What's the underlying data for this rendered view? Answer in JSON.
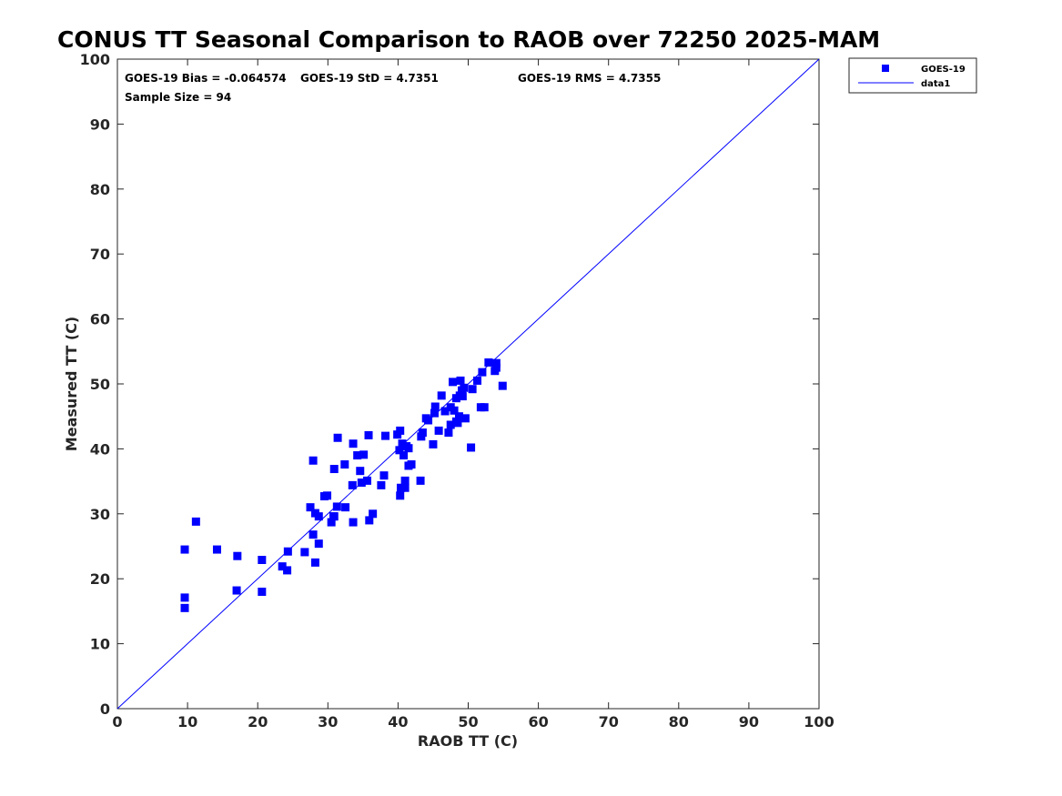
{
  "chart_data": {
    "type": "scatter",
    "title": "CONUS TT Seasonal Comparison to RAOB over 72250 2025-MAM",
    "xlabel": "RAOB TT (C)",
    "ylabel": "Measured TT (C)",
    "xlim": [
      0,
      100
    ],
    "ylim": [
      0,
      100
    ],
    "xticks": [
      "0",
      "10",
      "20",
      "30",
      "40",
      "50",
      "60",
      "70",
      "80",
      "90",
      "100"
    ],
    "yticks": [
      "0",
      "10",
      "20",
      "30",
      "40",
      "50",
      "60",
      "70",
      "80",
      "90",
      "100"
    ],
    "grid": false,
    "annotations": {
      "bias": "GOES-19 Bias = -0.064574",
      "std": "GOES-19 StD = 4.7351",
      "rms": "GOES-19 RMS = 4.7355",
      "sample": "Sample Size = 94"
    },
    "legend": {
      "position": "top-right-outside",
      "entries": [
        "GOES-19",
        "data1"
      ]
    },
    "colors": {
      "series": "#0000ff",
      "line": "#0000ff",
      "axis": "#262626"
    },
    "series": [
      {
        "name": "GOES-19",
        "marker": "square",
        "points": [
          [
            9.6,
            24.5
          ],
          [
            9.6,
            17.1
          ],
          [
            9.6,
            15.5
          ],
          [
            11.2,
            28.8
          ],
          [
            14.2,
            24.5
          ],
          [
            17.1,
            23.5
          ],
          [
            17.0,
            18.2
          ],
          [
            20.6,
            22.9
          ],
          [
            20.6,
            18.0
          ],
          [
            23.5,
            21.9
          ],
          [
            24.3,
            24.2
          ],
          [
            24.2,
            21.3
          ],
          [
            26.7,
            24.1
          ],
          [
            27.5,
            31.0
          ],
          [
            27.9,
            38.2
          ],
          [
            27.9,
            26.8
          ],
          [
            28.2,
            30.1
          ],
          [
            28.2,
            22.5
          ],
          [
            28.7,
            25.4
          ],
          [
            28.7,
            29.6
          ],
          [
            29.5,
            32.7
          ],
          [
            29.9,
            32.8
          ],
          [
            30.5,
            28.7
          ],
          [
            30.9,
            29.6
          ],
          [
            30.9,
            36.9
          ],
          [
            31.3,
            31.1
          ],
          [
            31.4,
            41.7
          ],
          [
            32.4,
            37.6
          ],
          [
            32.5,
            31.0
          ],
          [
            33.5,
            34.4
          ],
          [
            33.6,
            28.7
          ],
          [
            33.6,
            40.8
          ],
          [
            34.2,
            39.0
          ],
          [
            34.6,
            36.6
          ],
          [
            34.8,
            34.8
          ],
          [
            35.1,
            39.1
          ],
          [
            35.6,
            35.1
          ],
          [
            35.8,
            42.1
          ],
          [
            35.9,
            29.0
          ],
          [
            36.4,
            30.0
          ],
          [
            37.6,
            34.4
          ],
          [
            38.0,
            35.9
          ],
          [
            38.2,
            42.0
          ],
          [
            39.9,
            42.2
          ],
          [
            40.3,
            42.8
          ],
          [
            40.2,
            39.8
          ],
          [
            40.4,
            34.0
          ],
          [
            40.3,
            32.8
          ],
          [
            40.6,
            40.8
          ],
          [
            40.8,
            39.0
          ],
          [
            41.0,
            34.0
          ],
          [
            41.0,
            35.1
          ],
          [
            41.2,
            40.4
          ],
          [
            41.5,
            40.1
          ],
          [
            41.5,
            37.4
          ],
          [
            41.9,
            37.6
          ],
          [
            43.2,
            35.1
          ],
          [
            43.3,
            41.9
          ],
          [
            43.5,
            42.5
          ],
          [
            44.0,
            44.7
          ],
          [
            44.3,
            44.4
          ],
          [
            45.0,
            40.7
          ],
          [
            45.2,
            45.5
          ],
          [
            45.3,
            46.5
          ],
          [
            45.8,
            42.8
          ],
          [
            46.2,
            48.2
          ],
          [
            46.7,
            45.8
          ],
          [
            47.2,
            42.5
          ],
          [
            47.5,
            43.7
          ],
          [
            47.5,
            46.4
          ],
          [
            47.8,
            50.3
          ],
          [
            48.0,
            45.9
          ],
          [
            48.3,
            44.2
          ],
          [
            48.3,
            47.8
          ],
          [
            48.7,
            45.0
          ],
          [
            48.8,
            48.2
          ],
          [
            48.9,
            50.5
          ],
          [
            49.2,
            48.1
          ],
          [
            49.4,
            49.4
          ],
          [
            49.6,
            44.7
          ],
          [
            50.4,
            40.2
          ],
          [
            50.6,
            49.2
          ],
          [
            51.3,
            50.5
          ],
          [
            51.8,
            46.4
          ],
          [
            52.0,
            51.8
          ],
          [
            52.3,
            46.4
          ],
          [
            52.9,
            53.3
          ],
          [
            53.8,
            52.0
          ],
          [
            54.0,
            53.2
          ],
          [
            54.0,
            52.5
          ],
          [
            54.9,
            49.7
          ],
          [
            49.1,
            49.0
          ],
          [
            48.5,
            44.0
          ],
          [
            30.8,
            29.6
          ]
        ]
      },
      {
        "name": "data1",
        "marker": "line",
        "points": [
          [
            0,
            0
          ],
          [
            100,
            100
          ]
        ]
      }
    ]
  }
}
